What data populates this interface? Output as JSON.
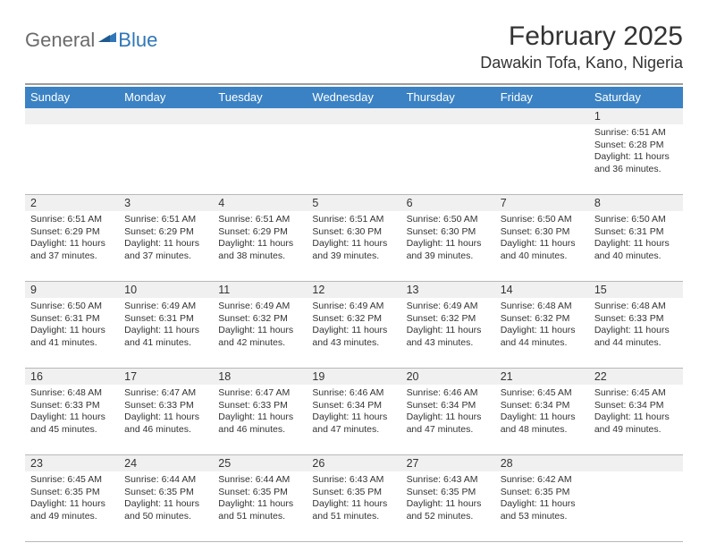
{
  "logo": {
    "general": "General",
    "blue": "Blue"
  },
  "title": "February 2025",
  "location": "Dawakin Tofa, Kano, Nigeria",
  "colors": {
    "header_bg": "#3b82c4",
    "header_text": "#ffffff",
    "rule": "#9c9c9c",
    "daynum_bg": "#f0f0f0",
    "text": "#333333",
    "logo_gray": "#6b6b6b",
    "logo_blue": "#2f77b8"
  },
  "day_names": [
    "Sunday",
    "Monday",
    "Tuesday",
    "Wednesday",
    "Thursday",
    "Friday",
    "Saturday"
  ],
  "weeks": [
    {
      "nums": [
        "",
        "",
        "",
        "",
        "",
        "",
        "1"
      ],
      "cells": [
        null,
        null,
        null,
        null,
        null,
        null,
        {
          "sunrise": "Sunrise: 6:51 AM",
          "sunset": "Sunset: 6:28 PM",
          "day1": "Daylight: 11 hours",
          "day2": "and 36 minutes."
        }
      ]
    },
    {
      "nums": [
        "2",
        "3",
        "4",
        "5",
        "6",
        "7",
        "8"
      ],
      "cells": [
        {
          "sunrise": "Sunrise: 6:51 AM",
          "sunset": "Sunset: 6:29 PM",
          "day1": "Daylight: 11 hours",
          "day2": "and 37 minutes."
        },
        {
          "sunrise": "Sunrise: 6:51 AM",
          "sunset": "Sunset: 6:29 PM",
          "day1": "Daylight: 11 hours",
          "day2": "and 37 minutes."
        },
        {
          "sunrise": "Sunrise: 6:51 AM",
          "sunset": "Sunset: 6:29 PM",
          "day1": "Daylight: 11 hours",
          "day2": "and 38 minutes."
        },
        {
          "sunrise": "Sunrise: 6:51 AM",
          "sunset": "Sunset: 6:30 PM",
          "day1": "Daylight: 11 hours",
          "day2": "and 39 minutes."
        },
        {
          "sunrise": "Sunrise: 6:50 AM",
          "sunset": "Sunset: 6:30 PM",
          "day1": "Daylight: 11 hours",
          "day2": "and 39 minutes."
        },
        {
          "sunrise": "Sunrise: 6:50 AM",
          "sunset": "Sunset: 6:30 PM",
          "day1": "Daylight: 11 hours",
          "day2": "and 40 minutes."
        },
        {
          "sunrise": "Sunrise: 6:50 AM",
          "sunset": "Sunset: 6:31 PM",
          "day1": "Daylight: 11 hours",
          "day2": "and 40 minutes."
        }
      ]
    },
    {
      "nums": [
        "9",
        "10",
        "11",
        "12",
        "13",
        "14",
        "15"
      ],
      "cells": [
        {
          "sunrise": "Sunrise: 6:50 AM",
          "sunset": "Sunset: 6:31 PM",
          "day1": "Daylight: 11 hours",
          "day2": "and 41 minutes."
        },
        {
          "sunrise": "Sunrise: 6:49 AM",
          "sunset": "Sunset: 6:31 PM",
          "day1": "Daylight: 11 hours",
          "day2": "and 41 minutes."
        },
        {
          "sunrise": "Sunrise: 6:49 AM",
          "sunset": "Sunset: 6:32 PM",
          "day1": "Daylight: 11 hours",
          "day2": "and 42 minutes."
        },
        {
          "sunrise": "Sunrise: 6:49 AM",
          "sunset": "Sunset: 6:32 PM",
          "day1": "Daylight: 11 hours",
          "day2": "and 43 minutes."
        },
        {
          "sunrise": "Sunrise: 6:49 AM",
          "sunset": "Sunset: 6:32 PM",
          "day1": "Daylight: 11 hours",
          "day2": "and 43 minutes."
        },
        {
          "sunrise": "Sunrise: 6:48 AM",
          "sunset": "Sunset: 6:32 PM",
          "day1": "Daylight: 11 hours",
          "day2": "and 44 minutes."
        },
        {
          "sunrise": "Sunrise: 6:48 AM",
          "sunset": "Sunset: 6:33 PM",
          "day1": "Daylight: 11 hours",
          "day2": "and 44 minutes."
        }
      ]
    },
    {
      "nums": [
        "16",
        "17",
        "18",
        "19",
        "20",
        "21",
        "22"
      ],
      "cells": [
        {
          "sunrise": "Sunrise: 6:48 AM",
          "sunset": "Sunset: 6:33 PM",
          "day1": "Daylight: 11 hours",
          "day2": "and 45 minutes."
        },
        {
          "sunrise": "Sunrise: 6:47 AM",
          "sunset": "Sunset: 6:33 PM",
          "day1": "Daylight: 11 hours",
          "day2": "and 46 minutes."
        },
        {
          "sunrise": "Sunrise: 6:47 AM",
          "sunset": "Sunset: 6:33 PM",
          "day1": "Daylight: 11 hours",
          "day2": "and 46 minutes."
        },
        {
          "sunrise": "Sunrise: 6:46 AM",
          "sunset": "Sunset: 6:34 PM",
          "day1": "Daylight: 11 hours",
          "day2": "and 47 minutes."
        },
        {
          "sunrise": "Sunrise: 6:46 AM",
          "sunset": "Sunset: 6:34 PM",
          "day1": "Daylight: 11 hours",
          "day2": "and 47 minutes."
        },
        {
          "sunrise": "Sunrise: 6:45 AM",
          "sunset": "Sunset: 6:34 PM",
          "day1": "Daylight: 11 hours",
          "day2": "and 48 minutes."
        },
        {
          "sunrise": "Sunrise: 6:45 AM",
          "sunset": "Sunset: 6:34 PM",
          "day1": "Daylight: 11 hours",
          "day2": "and 49 minutes."
        }
      ]
    },
    {
      "nums": [
        "23",
        "24",
        "25",
        "26",
        "27",
        "28",
        ""
      ],
      "cells": [
        {
          "sunrise": "Sunrise: 6:45 AM",
          "sunset": "Sunset: 6:35 PM",
          "day1": "Daylight: 11 hours",
          "day2": "and 49 minutes."
        },
        {
          "sunrise": "Sunrise: 6:44 AM",
          "sunset": "Sunset: 6:35 PM",
          "day1": "Daylight: 11 hours",
          "day2": "and 50 minutes."
        },
        {
          "sunrise": "Sunrise: 6:44 AM",
          "sunset": "Sunset: 6:35 PM",
          "day1": "Daylight: 11 hours",
          "day2": "and 51 minutes."
        },
        {
          "sunrise": "Sunrise: 6:43 AM",
          "sunset": "Sunset: 6:35 PM",
          "day1": "Daylight: 11 hours",
          "day2": "and 51 minutes."
        },
        {
          "sunrise": "Sunrise: 6:43 AM",
          "sunset": "Sunset: 6:35 PM",
          "day1": "Daylight: 11 hours",
          "day2": "and 52 minutes."
        },
        {
          "sunrise": "Sunrise: 6:42 AM",
          "sunset": "Sunset: 6:35 PM",
          "day1": "Daylight: 11 hours",
          "day2": "and 53 minutes."
        },
        null
      ]
    }
  ]
}
